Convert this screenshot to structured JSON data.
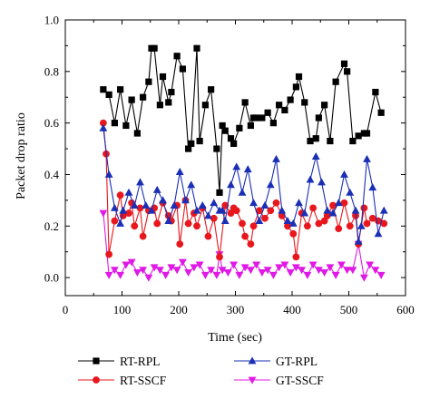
{
  "chart_data": {
    "type": "line",
    "title": "",
    "xlabel": "Time (sec)",
    "ylabel": "Packet drop ratio",
    "xlim": [
      0,
      600
    ],
    "ylim": [
      -0.07,
      1.0
    ],
    "xticks": [
      0,
      100,
      200,
      300,
      400,
      500,
      600
    ],
    "yticks": [
      0.0,
      0.2,
      0.4,
      0.6,
      0.8,
      1.0
    ],
    "xtick_labels": [
      "0",
      "100",
      "200",
      "300",
      "400",
      "500",
      "600"
    ],
    "ytick_labels": [
      "0.0",
      "0.2",
      "0.4",
      "0.6",
      "0.8",
      "1.0"
    ],
    "grid": false,
    "legend_position": "below",
    "series": [
      {
        "name": "RT-RPL",
        "color": "#000000",
        "marker": "square",
        "x": [
          67,
          77,
          87,
          97,
          107,
          117,
          127,
          137,
          147,
          152,
          157,
          167,
          172,
          182,
          187,
          197,
          207,
          217,
          222,
          232,
          237,
          247,
          257,
          267,
          272,
          277,
          282,
          292,
          297,
          307,
          317,
          327,
          332,
          337,
          347,
          357,
          367,
          377,
          387,
          397,
          407,
          412,
          422,
          432,
          442,
          447,
          457,
          467,
          477,
          492,
          497,
          507,
          517,
          527,
          532,
          547,
          557
        ],
        "y": [
          0.73,
          0.71,
          0.6,
          0.73,
          0.59,
          0.69,
          0.56,
          0.7,
          0.76,
          0.89,
          0.89,
          0.67,
          0.78,
          0.68,
          0.72,
          0.86,
          0.81,
          0.5,
          0.52,
          0.89,
          0.53,
          0.67,
          0.73,
          0.5,
          0.33,
          0.59,
          0.57,
          0.54,
          0.52,
          0.58,
          0.68,
          0.59,
          0.62,
          0.62,
          0.62,
          0.64,
          0.6,
          0.67,
          0.65,
          0.69,
          0.74,
          0.78,
          0.68,
          0.53,
          0.54,
          0.62,
          0.67,
          0.53,
          0.76,
          0.83,
          0.8,
          0.53,
          0.55,
          0.56,
          0.56,
          0.72,
          0.64
        ]
      },
      {
        "name": "RT-SSCF",
        "color": "#e8171d",
        "marker": "circle",
        "x": [
          67,
          72,
          77,
          87,
          97,
          102,
          112,
          117,
          122,
          132,
          137,
          147,
          157,
          162,
          172,
          182,
          187,
          197,
          202,
          212,
          217,
          227,
          232,
          242,
          252,
          262,
          272,
          282,
          292,
          297,
          302,
          312,
          317,
          327,
          332,
          342,
          352,
          362,
          372,
          382,
          392,
          402,
          407,
          417,
          427,
          437,
          447,
          457,
          462,
          472,
          482,
          492,
          502,
          512,
          517,
          527,
          532,
          542,
          552,
          562
        ],
        "y": [
          0.6,
          0.48,
          0.09,
          0.22,
          0.32,
          0.24,
          0.25,
          0.29,
          0.2,
          0.27,
          0.16,
          0.26,
          0.27,
          0.21,
          0.29,
          0.24,
          0.22,
          0.28,
          0.13,
          0.3,
          0.21,
          0.25,
          0.2,
          0.27,
          0.16,
          0.23,
          0.08,
          0.28,
          0.25,
          0.27,
          0.26,
          0.21,
          0.16,
          0.13,
          0.2,
          0.26,
          0.23,
          0.26,
          0.29,
          0.24,
          0.2,
          0.17,
          0.08,
          0.25,
          0.2,
          0.27,
          0.21,
          0.22,
          0.24,
          0.28,
          0.19,
          0.29,
          0.2,
          0.24,
          0.13,
          0.27,
          0.21,
          0.23,
          0.22,
          0.21
        ]
      },
      {
        "name": "GT-RPL",
        "color": "#1a2fb5",
        "marker": "triangle-up",
        "x": [
          67,
          77,
          87,
          97,
          102,
          112,
          122,
          132,
          142,
          152,
          162,
          172,
          182,
          192,
          202,
          212,
          222,
          232,
          242,
          252,
          262,
          272,
          277,
          282,
          292,
          302,
          312,
          322,
          332,
          342,
          352,
          362,
          372,
          382,
          392,
          402,
          412,
          422,
          432,
          442,
          452,
          462,
          472,
          482,
          492,
          502,
          512,
          517,
          522,
          532,
          542,
          552,
          562
        ],
        "y": [
          0.58,
          0.4,
          0.27,
          0.21,
          0.26,
          0.33,
          0.28,
          0.37,
          0.28,
          0.26,
          0.34,
          0.3,
          0.22,
          0.28,
          0.41,
          0.3,
          0.36,
          0.26,
          0.28,
          0.24,
          0.29,
          0.26,
          0.26,
          0.22,
          0.36,
          0.43,
          0.33,
          0.42,
          0.29,
          0.22,
          0.28,
          0.36,
          0.46,
          0.26,
          0.22,
          0.21,
          0.29,
          0.25,
          0.38,
          0.47,
          0.37,
          0.26,
          0.25,
          0.29,
          0.4,
          0.33,
          0.26,
          0.14,
          0.2,
          0.46,
          0.35,
          0.17,
          0.26
        ]
      },
      {
        "name": "GT-SSCF",
        "color": "#e019e6",
        "marker": "triangle-down",
        "x": [
          67,
          77,
          87,
          97,
          107,
          117,
          127,
          137,
          147,
          157,
          167,
          177,
          187,
          197,
          207,
          217,
          227,
          237,
          247,
          257,
          267,
          272,
          277,
          287,
          297,
          307,
          317,
          327,
          337,
          347,
          357,
          367,
          377,
          387,
          397,
          407,
          417,
          427,
          437,
          447,
          457,
          467,
          477,
          487,
          497,
          507,
          517,
          527,
          537,
          547,
          557
        ],
        "y": [
          0.25,
          0.01,
          0.03,
          0.01,
          0.05,
          0.06,
          0.02,
          0.03,
          0.0,
          0.04,
          0.03,
          0.01,
          0.04,
          0.03,
          0.06,
          0.02,
          0.04,
          0.05,
          0.01,
          0.03,
          0.01,
          0.09,
          0.03,
          0.02,
          0.05,
          0.01,
          0.04,
          0.03,
          0.05,
          0.02,
          0.03,
          0.01,
          0.04,
          0.05,
          0.02,
          0.04,
          0.03,
          0.01,
          0.05,
          0.03,
          0.02,
          0.04,
          0.01,
          0.05,
          0.03,
          0.03,
          0.13,
          0.0,
          0.05,
          0.03,
          0.01
        ]
      }
    ]
  }
}
